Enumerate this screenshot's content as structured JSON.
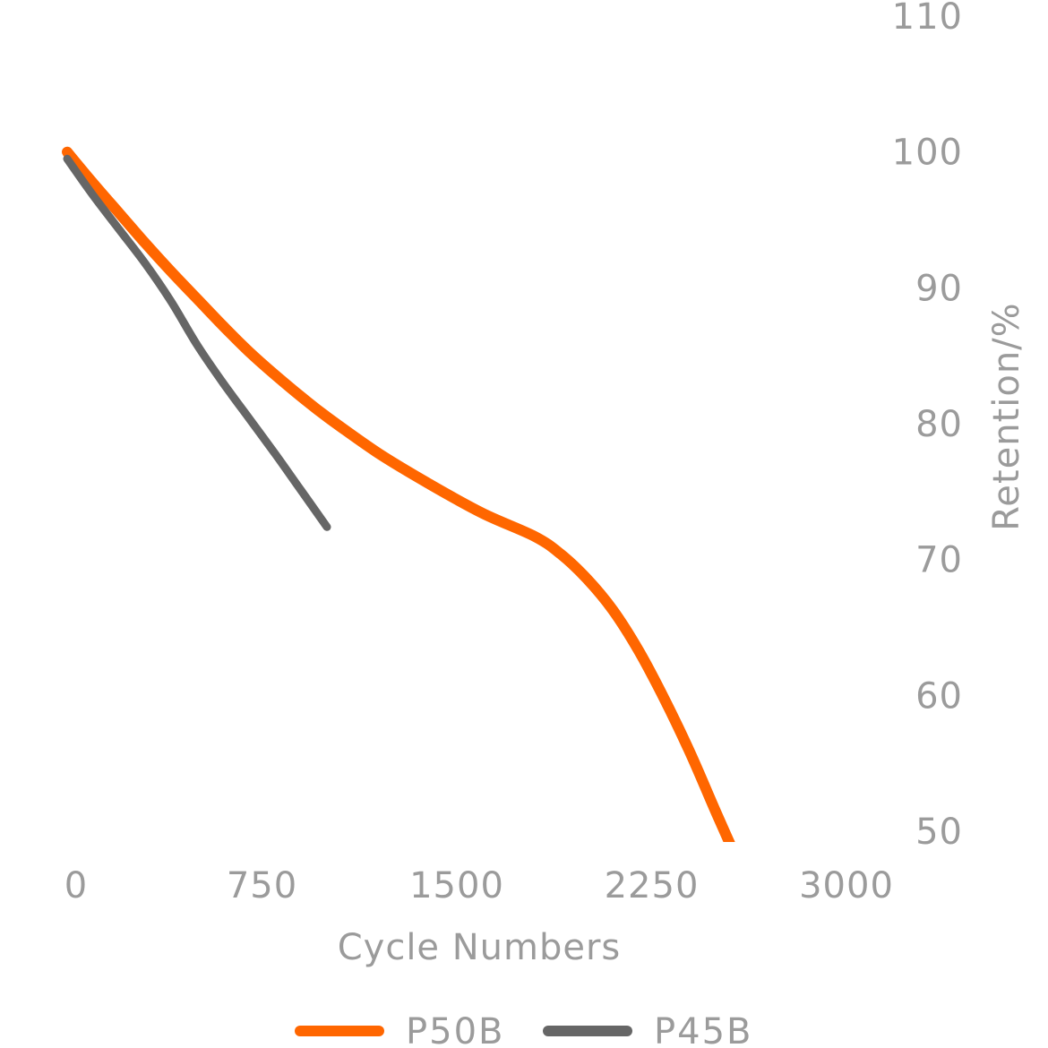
{
  "chart_data": {
    "type": "line",
    "title": "",
    "xlabel": "Cycle Numbers",
    "ylabel": "Retention/%",
    "xlim": [
      0,
      3000
    ],
    "ylim": [
      50,
      110
    ],
    "x_ticks": [
      0,
      750,
      1500,
      2250,
      3000
    ],
    "x_tick_labels": [
      "0",
      "750",
      "1500",
      "2250",
      "3000"
    ],
    "y_ticks": [
      50,
      60,
      70,
      80,
      90,
      100,
      110
    ],
    "y_tick_labels": [
      "50",
      "60",
      "70",
      "80",
      "90",
      "100",
      "110"
    ],
    "y_axis_side": "right",
    "grid": false,
    "legend_position": "bottom",
    "series": [
      {
        "name": "P50B",
        "color": "#ff6600",
        "x": [
          0,
          100,
          200,
          300,
          400,
          500,
          600,
          700,
          800,
          900,
          1000,
          1200,
          1400,
          1600,
          1800,
          1900,
          2000,
          2100,
          2200,
          2300,
          2400,
          2500,
          2600
        ],
        "y": [
          100,
          97.7,
          95.5,
          93.3,
          91.2,
          89.2,
          87.2,
          85.3,
          83.6,
          82,
          80.5,
          77.8,
          75.5,
          73.4,
          71.7,
          70.4,
          68.6,
          66.3,
          63.3,
          59.7,
          55.7,
          51.3,
          47
        ]
      },
      {
        "name": "P45B",
        "color": "#666666",
        "x": [
          0,
          100,
          200,
          300,
          400,
          500,
          600,
          700,
          800,
          900,
          1000
        ],
        "y": [
          99.5,
          96.8,
          94.3,
          91.8,
          89,
          85.8,
          83,
          80.4,
          77.8,
          75.1,
          72.4
        ]
      }
    ]
  }
}
